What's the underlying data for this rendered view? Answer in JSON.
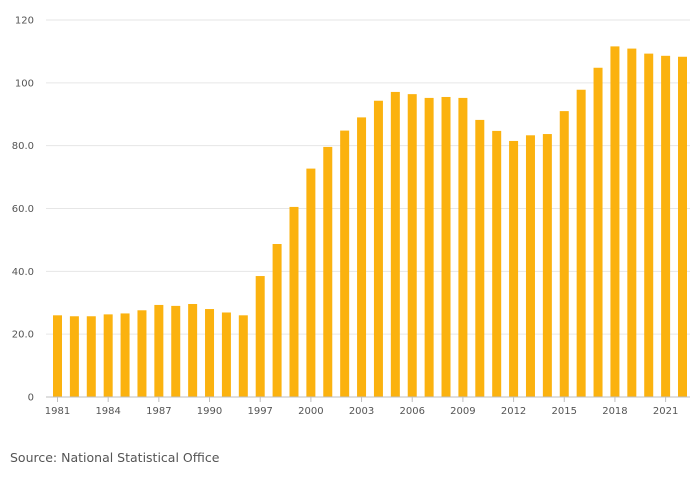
{
  "chart_data": {
    "type": "bar",
    "title": "",
    "xlabel": "",
    "ylabel": "",
    "ylim": [
      0,
      120
    ],
    "yticks": [
      {
        "value": 0,
        "label": "0"
      },
      {
        "value": 20,
        "label": "20.0"
      },
      {
        "value": 40,
        "label": "40.0"
      },
      {
        "value": 60,
        "label": "60.0"
      },
      {
        "value": 80,
        "label": "80.0"
      },
      {
        "value": 100,
        "label": "100"
      },
      {
        "value": 120,
        "label": "120"
      }
    ],
    "xtick_labels": [
      "1981",
      "1984",
      "1987",
      "1990",
      "1997",
      "2000",
      "2003",
      "2006",
      "2009",
      "2012",
      "2015",
      "2018",
      "2021"
    ],
    "categories": [
      "1981",
      "1982",
      "1983",
      "1984",
      "1985",
      "1986",
      "1987",
      "1988",
      "1989",
      "1990",
      "1991",
      "1992",
      "1997",
      "1998",
      "1999",
      "2000",
      "2001",
      "2002",
      "2003",
      "2004",
      "2005",
      "2006",
      "2007",
      "2008",
      "2009",
      "2010",
      "2011",
      "2012",
      "2013",
      "2014",
      "2015",
      "2016",
      "2017",
      "2018",
      "2019",
      "2020",
      "2021",
      "2022"
    ],
    "values": [
      26.0,
      25.7,
      25.7,
      26.3,
      26.6,
      27.6,
      29.3,
      29.0,
      29.6,
      28.0,
      26.9,
      26.0,
      38.5,
      48.7,
      60.5,
      72.7,
      79.6,
      84.8,
      89.0,
      94.3,
      97.1,
      96.4,
      95.2,
      95.5,
      95.2,
      88.2,
      84.7,
      81.5,
      83.3,
      83.7,
      91.0,
      97.8,
      104.8,
      111.6,
      110.9,
      109.3,
      108.6,
      108.3
    ],
    "bar_color": "#fbb20f",
    "grid": true,
    "grid_color": "#e6e6e6",
    "axis_color": "#bfbfbf"
  },
  "source": "Source: National Statistical Office"
}
